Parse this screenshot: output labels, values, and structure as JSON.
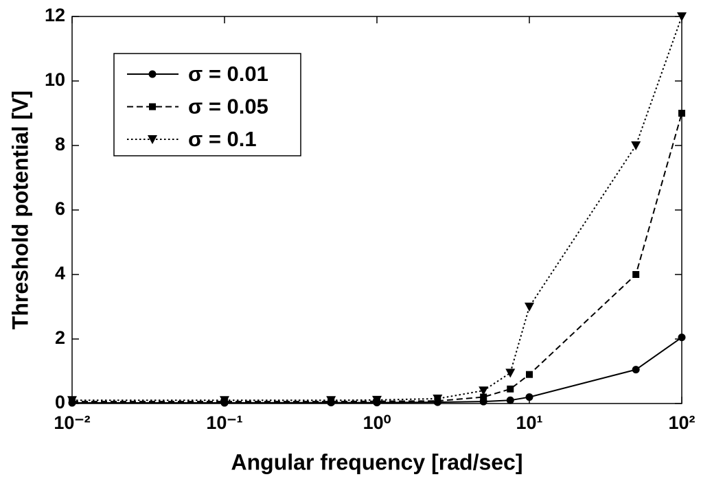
{
  "chart_data": {
    "type": "line",
    "x_label": "Angular frequency [rad/sec]",
    "y_label": "Threshold potential [V]",
    "x_scale": "log",
    "x": [
      0.01,
      0.1,
      0.5,
      1,
      2.5,
      5,
      7.5,
      10,
      50,
      100
    ],
    "xlim": [
      0.01,
      100
    ],
    "xticks": [
      {
        "value": 0.01,
        "label": "10⁻²"
      },
      {
        "value": 0.1,
        "label": "10⁻¹"
      },
      {
        "value": 1,
        "label": "10⁰"
      },
      {
        "value": 10,
        "label": "10¹"
      },
      {
        "value": 100,
        "label": "10²"
      }
    ],
    "ylim": [
      0,
      12
    ],
    "yticks": [
      0,
      2,
      4,
      6,
      8,
      10,
      12
    ],
    "legend": "upper left",
    "series": [
      {
        "name": "σ = 0.01",
        "color": "#000000",
        "linestyle": "solid",
        "marker": "circle",
        "values": [
          0.02,
          0.02,
          0.03,
          0.03,
          0.04,
          0.06,
          0.1,
          0.2,
          1.05,
          2.05
        ]
      },
      {
        "name": "σ = 0.05",
        "color": "#000000",
        "linestyle": "dashed",
        "marker": "square",
        "values": [
          0.06,
          0.06,
          0.06,
          0.07,
          0.08,
          0.2,
          0.45,
          0.9,
          4,
          9
        ]
      },
      {
        "name": "σ = 0.1",
        "color": "#000000",
        "linestyle": "dotted",
        "marker": "triangle-down",
        "values": [
          0.1,
          0.1,
          0.1,
          0.11,
          0.15,
          0.4,
          0.95,
          3,
          8,
          12
        ]
      }
    ]
  }
}
